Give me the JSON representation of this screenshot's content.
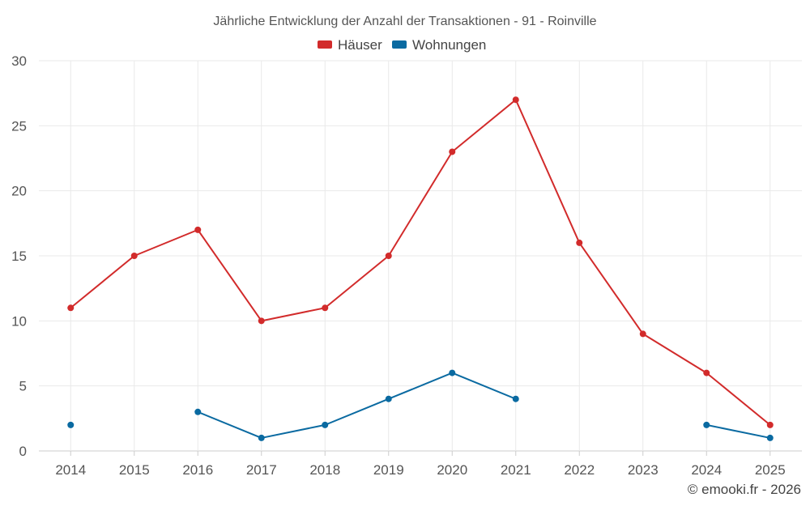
{
  "chart_data": {
    "type": "line",
    "title": "Jährliche Entwicklung der Anzahl der Transaktionen - 91 - Roinville",
    "categories": [
      "2014",
      "2015",
      "2016",
      "2017",
      "2018",
      "2019",
      "2020",
      "2021",
      "2022",
      "2023",
      "2024",
      "2025"
    ],
    "ylim": [
      0,
      30
    ],
    "yticks": [
      0,
      5,
      10,
      15,
      20,
      25,
      30
    ],
    "grid": true,
    "legend_position": "top-center",
    "series": [
      {
        "name": "Häuser",
        "color": "#d22b2b",
        "values": [
          11,
          15,
          17,
          10,
          11,
          15,
          23,
          27,
          16,
          9,
          6,
          2
        ]
      },
      {
        "name": "Wohnungen",
        "color": "#0a6aa1",
        "values": [
          2,
          null,
          3,
          1,
          2,
          4,
          6,
          4,
          null,
          null,
          2,
          1
        ]
      }
    ],
    "credit": "© emooki.fr - 2026"
  }
}
